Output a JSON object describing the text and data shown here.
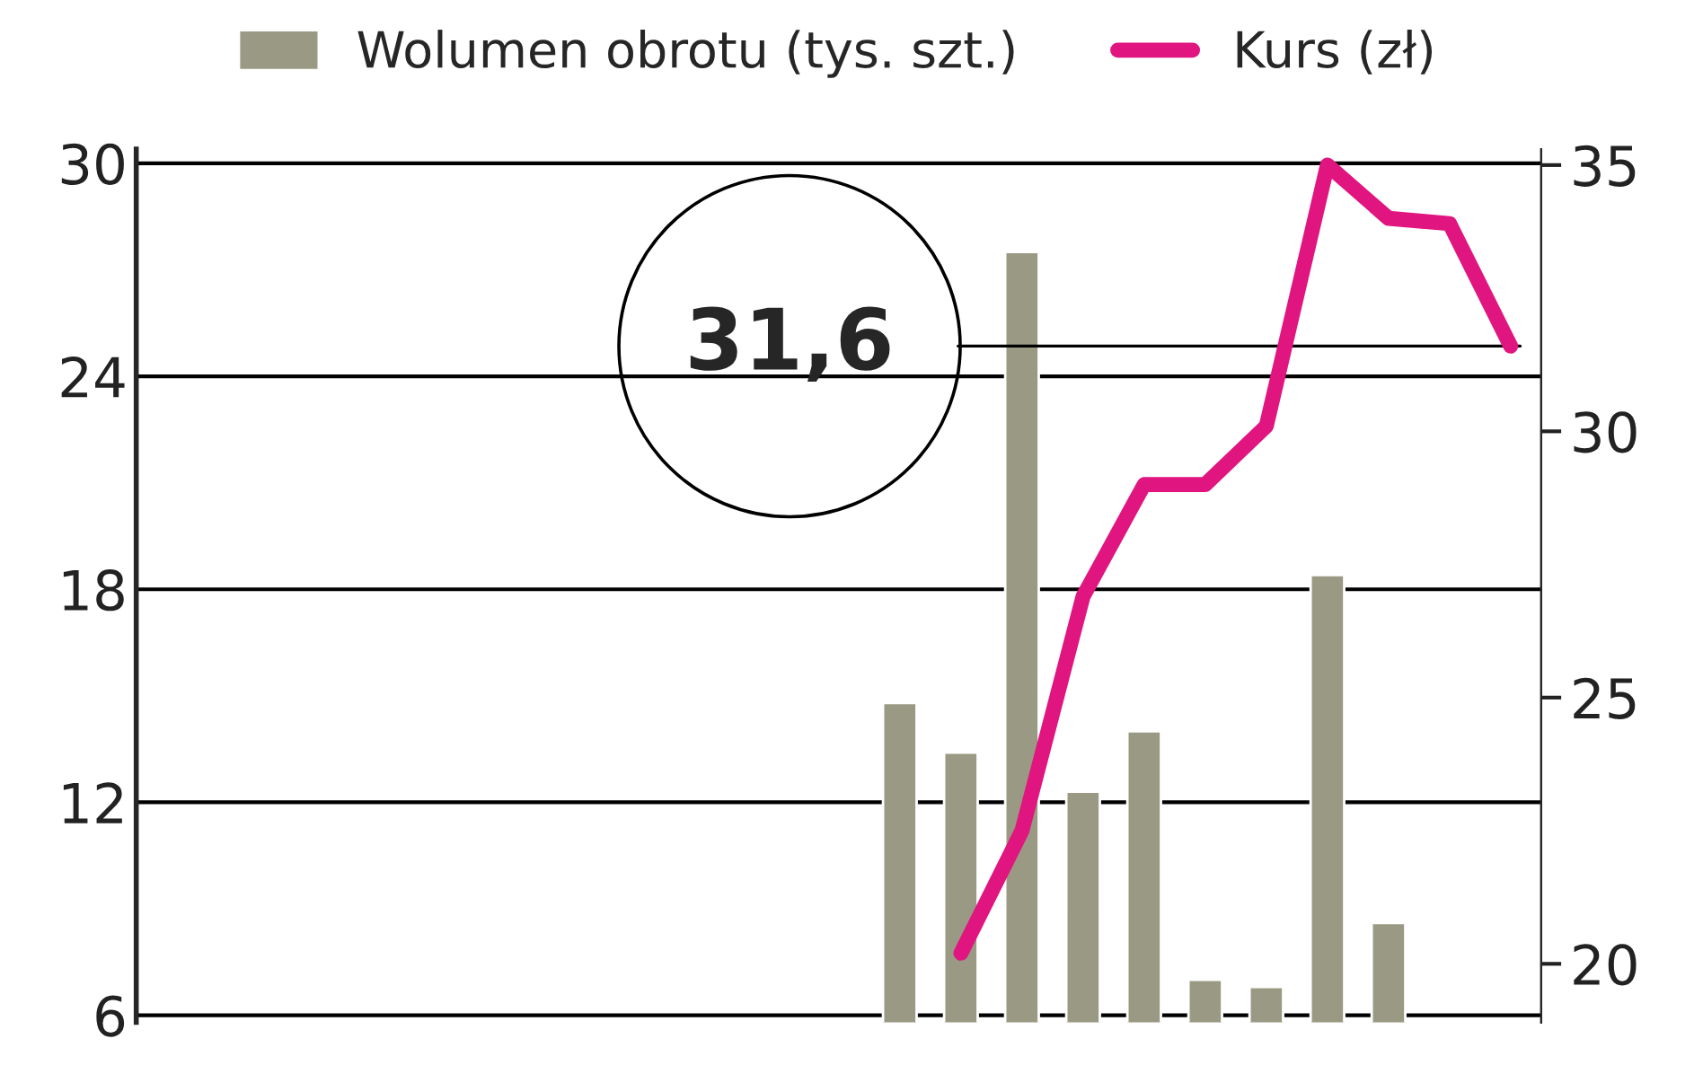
{
  "chart_data": {
    "type": "bar",
    "categories": [
      null,
      null,
      null,
      null,
      null,
      null,
      null,
      null,
      null,
      null,
      null,
      null,
      null,
      null,
      null,
      null,
      null,
      null,
      null,
      null,
      null,
      null,
      null
    ],
    "series": [
      {
        "name": "Wolumen obrotu (tys. szt.)",
        "color": "#9a9a84",
        "values": [
          null,
          null,
          null,
          null,
          null,
          null,
          null,
          null,
          null,
          null,
          null,
          null,
          14.8,
          13.4,
          27.5,
          12.3,
          14.0,
          7.0,
          6.8,
          18.4,
          8.6,
          null,
          null
        ]
      },
      {
        "name": "Kurs (zł)",
        "type": "line",
        "axis": "y2",
        "color": "#e0157f",
        "values": [
          null,
          null,
          null,
          null,
          null,
          null,
          null,
          null,
          null,
          null,
          null,
          null,
          null,
          20.2,
          22.5,
          26.9,
          29.0,
          29.0,
          30.1,
          35.0,
          34.0,
          33.9,
          31.6
        ]
      }
    ],
    "ylim": [
      5.8,
      30.4
    ],
    "yticks": [
      6,
      12,
      18,
      24,
      30
    ],
    "y2lim": [
      18.9,
      35.3
    ],
    "y2ticks": [
      20,
      25,
      30,
      35
    ],
    "grid": "y",
    "legend": "top",
    "ref_lines": [
      {
        "axis": "y2",
        "value": 31.6,
        "label": "31,6",
        "color": "#000000"
      }
    ]
  }
}
